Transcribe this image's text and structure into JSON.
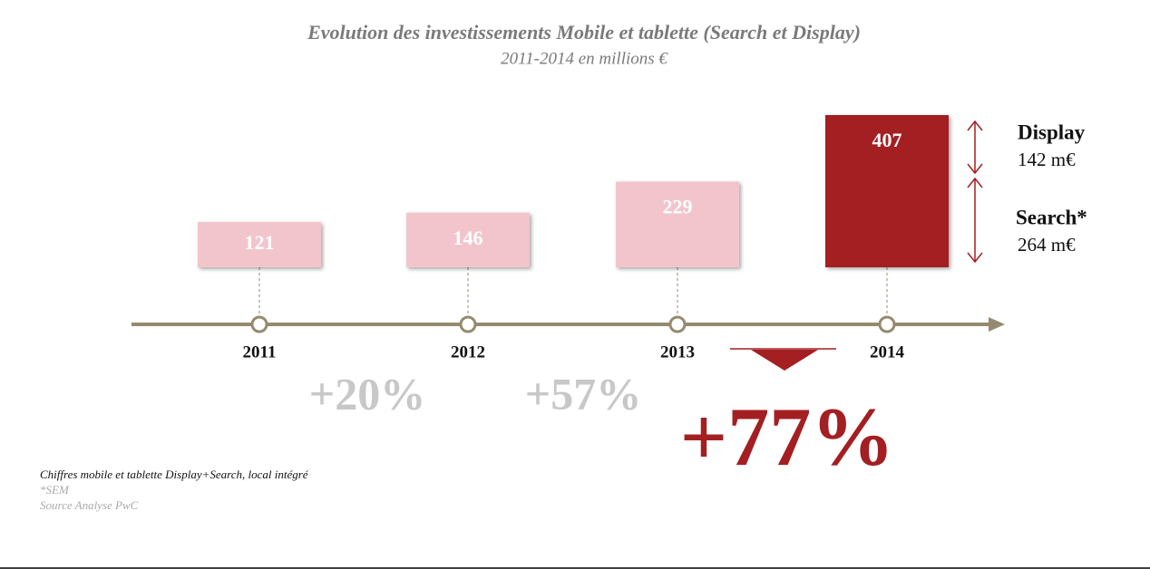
{
  "chart_data": {
    "type": "bar",
    "title": "Evolution des investissements Mobile et tablette (Search et Display)",
    "subtitle": "2011-2014 en millions €",
    "categories": [
      "2011",
      "2012",
      "2013",
      "2014"
    ],
    "values": [
      121,
      146,
      229,
      407
    ],
    "colors": [
      "#f2c5cc",
      "#f2c5cc",
      "#f2c5cc",
      "#a31f22"
    ],
    "growth": [
      "+20%",
      "+57%",
      "+77%"
    ],
    "split": [
      {
        "name": "Display",
        "label": "142 m€"
      },
      {
        "name": "Search*",
        "label": "264 m€"
      }
    ],
    "notes": [
      "Chiffres mobile et tablette Display+Search, local intégré",
      "*SEM",
      "Source Analyse PwC"
    ]
  }
}
